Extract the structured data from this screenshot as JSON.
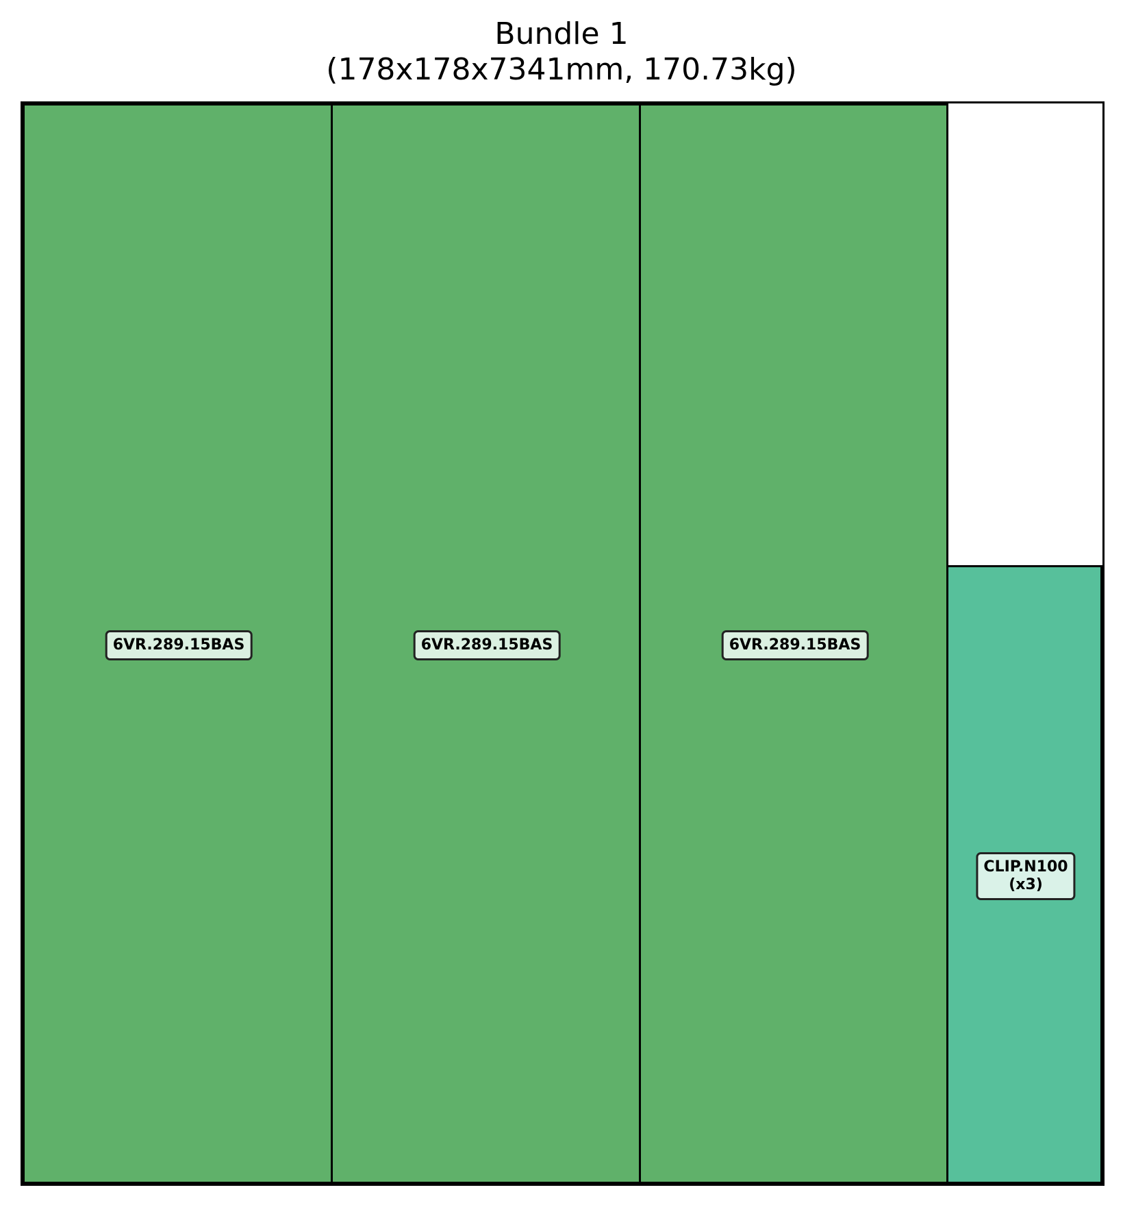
{
  "title": {
    "line1": "Bundle 1",
    "line2": "(178x178x7341mm, 170.73kg)"
  },
  "items": [
    {
      "label": "6VR.289.15BAS",
      "qty": "",
      "color": "#60b16a"
    },
    {
      "label": "6VR.289.15BAS",
      "qty": "",
      "color": "#60b16a"
    },
    {
      "label": "6VR.289.15BAS",
      "qty": "",
      "color": "#60b16a"
    },
    {
      "label": "CLIP.N100",
      "qty": "(x3)",
      "color": "#57c09b"
    }
  ],
  "colors": {
    "frame": "#000000",
    "background": "#ffffff"
  }
}
